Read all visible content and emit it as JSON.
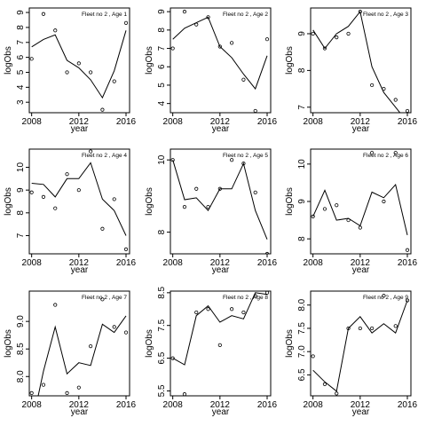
{
  "chart_data": [
    {
      "type": "line",
      "title": "Fleet no 2 , Age 1",
      "xlabel": "year",
      "ylabel": "logObs",
      "x": [
        2008,
        2009,
        2010,
        2011,
        2012,
        2013,
        2014,
        2015,
        2016
      ],
      "xticks": [
        2008,
        2012,
        2016
      ],
      "xlim": [
        2007.8,
        2016.3
      ],
      "yticks": [
        3,
        4,
        5,
        6,
        7,
        8,
        9
      ],
      "ylim": [
        2.3,
        9.3
      ],
      "series": [
        {
          "style": "line",
          "values": [
            6.7,
            7.2,
            7.5,
            5.8,
            5.3,
            4.5,
            3.3,
            5.1,
            7.8
          ]
        },
        {
          "style": "points",
          "values": [
            5.9,
            8.9,
            7.8,
            5.0,
            5.6,
            5.0,
            2.5,
            4.4,
            8.3
          ]
        }
      ]
    },
    {
      "type": "line",
      "title": "Fleet no 2 , Age 2",
      "xlabel": "year",
      "ylabel": "logObs",
      "x": [
        2008,
        2009,
        2010,
        2011,
        2012,
        2013,
        2014,
        2015,
        2016
      ],
      "xticks": [
        2008,
        2012,
        2016
      ],
      "xlim": [
        2007.8,
        2016.3
      ],
      "yticks": [
        4,
        5,
        6,
        7,
        8,
        9
      ],
      "ylim": [
        3.5,
        9.2
      ],
      "series": [
        {
          "style": "line",
          "values": [
            7.5,
            8.1,
            8.4,
            8.7,
            7.1,
            6.5,
            5.6,
            4.8,
            6.6
          ]
        },
        {
          "style": "points",
          "values": [
            7.0,
            9.0,
            8.3,
            8.7,
            7.1,
            7.3,
            5.3,
            3.6,
            7.5
          ]
        }
      ]
    },
    {
      "type": "line",
      "title": "Fleet no 2 , Age 3",
      "xlabel": "year",
      "ylabel": "logObs",
      "x": [
        2008,
        2009,
        2010,
        2011,
        2012,
        2013,
        2014,
        2015,
        2016
      ],
      "xticks": [
        2008,
        2012,
        2016
      ],
      "xlim": [
        2007.8,
        2016.3
      ],
      "yticks": [
        7.0,
        8.0,
        9.0
      ],
      "ylim": [
        6.85,
        9.7
      ],
      "series": [
        {
          "style": "line",
          "values": [
            9.1,
            8.6,
            9.0,
            9.2,
            9.6,
            8.1,
            7.4,
            7.0,
            6.6
          ]
        },
        {
          "style": "points",
          "values": [
            9.0,
            8.6,
            8.9,
            9.0,
            9.6,
            7.6,
            7.5,
            7.2,
            6.9
          ]
        }
      ]
    },
    {
      "type": "line",
      "title": "Fleet no 2 , Age 4",
      "xlabel": "year",
      "ylabel": "logObs",
      "x": [
        2008,
        2009,
        2010,
        2011,
        2012,
        2013,
        2014,
        2015,
        2016
      ],
      "xticks": [
        2008,
        2012,
        2016
      ],
      "xlim": [
        2007.8,
        2016.3
      ],
      "yticks": [
        7,
        8,
        9,
        10
      ],
      "ylim": [
        6.2,
        10.8
      ],
      "series": [
        {
          "style": "line",
          "values": [
            9.3,
            9.25,
            8.7,
            9.5,
            9.5,
            10.2,
            8.6,
            8.1,
            7.0
          ]
        },
        {
          "style": "points",
          "values": [
            8.9,
            8.7,
            8.2,
            9.7,
            9.0,
            10.7,
            7.3,
            8.6,
            6.4
          ]
        }
      ]
    },
    {
      "type": "line",
      "title": "Fleet no 2 , Age 5",
      "xlabel": "year",
      "ylabel": "logObs",
      "x": [
        2008,
        2009,
        2010,
        2011,
        2012,
        2013,
        2014,
        2015,
        2016
      ],
      "xticks": [
        2008,
        2012,
        2016
      ],
      "xlim": [
        2007.8,
        2016.3
      ],
      "yticks": [
        8.0,
        10.0
      ],
      "ylim": [
        7.4,
        10.3
      ],
      "series": [
        {
          "style": "line",
          "values": [
            10.0,
            8.9,
            8.95,
            8.6,
            9.2,
            9.2,
            9.9,
            8.6,
            7.8
          ]
        },
        {
          "style": "points",
          "values": [
            10.0,
            8.7,
            9.2,
            8.7,
            9.2,
            10.0,
            9.9,
            9.1,
            7.4
          ]
        }
      ]
    },
    {
      "type": "line",
      "title": "Fleet no 2 , Age 6",
      "xlabel": "year",
      "ylabel": "logObs",
      "x": [
        2008,
        2009,
        2010,
        2011,
        2012,
        2013,
        2014,
        2015,
        2016
      ],
      "xticks": [
        2008,
        2012,
        2016
      ],
      "xlim": [
        2007.8,
        2016.3
      ],
      "yticks": [
        8.0,
        9.0,
        10.0
      ],
      "ylim": [
        7.6,
        10.4
      ],
      "series": [
        {
          "style": "line",
          "values": [
            8.6,
            9.3,
            8.5,
            8.55,
            8.35,
            9.25,
            9.1,
            9.45,
            8.1
          ]
        },
        {
          "style": "points",
          "values": [
            8.6,
            8.8,
            8.9,
            8.5,
            8.3,
            10.3,
            9.0,
            10.3,
            7.7
          ]
        }
      ]
    },
    {
      "type": "line",
      "title": "Fleet no 2 , Age 7",
      "xlabel": "year",
      "ylabel": "logObs",
      "x": [
        2008,
        2009,
        2010,
        2011,
        2012,
        2013,
        2014,
        2015,
        2016
      ],
      "xticks": [
        2008,
        2012,
        2016
      ],
      "xlim": [
        2007.8,
        2016.3
      ],
      "yticks": [
        8.0,
        8.5,
        9.0
      ],
      "ylim": [
        7.65,
        9.55
      ],
      "series": [
        {
          "style": "line",
          "values": [
            7.1,
            8.1,
            8.9,
            8.05,
            8.25,
            8.2,
            8.95,
            8.8,
            9.1
          ]
        },
        {
          "style": "points",
          "values": [
            7.7,
            7.85,
            9.3,
            7.7,
            7.8,
            8.55,
            9.4,
            8.9,
            8.8
          ]
        }
      ]
    },
    {
      "type": "line",
      "title": "Fleet no 2 , Age 8",
      "xlabel": "year",
      "ylabel": "logObs",
      "x": [
        2008,
        2009,
        2010,
        2011,
        2012,
        2013,
        2014,
        2015,
        2016
      ],
      "xticks": [
        2008,
        2012,
        2016
      ],
      "xlim": [
        2007.8,
        2016.3
      ],
      "yticks": [
        5.5,
        6.5,
        7.5,
        8.5
      ],
      "ylim": [
        5.35,
        8.55
      ],
      "series": [
        {
          "style": "line",
          "values": [
            6.5,
            6.3,
            7.8,
            8.1,
            7.6,
            7.8,
            7.7,
            8.5,
            8.45
          ]
        },
        {
          "style": "points",
          "values": [
            6.5,
            5.4,
            7.9,
            8.0,
            6.9,
            8.0,
            7.9,
            8.4,
            8.5
          ]
        }
      ]
    },
    {
      "type": "line",
      "title": "Fleet no 2 , Age 9",
      "xlabel": "year",
      "ylabel": "logObs",
      "x": [
        2008,
        2009,
        2010,
        2011,
        2012,
        2013,
        2014,
        2015,
        2016
      ],
      "xticks": [
        2008,
        2012,
        2016
      ],
      "xlim": [
        2007.8,
        2016.3
      ],
      "yticks": [
        6.5,
        7.0,
        7.5,
        8.0
      ],
      "ylim": [
        6.05,
        8.3
      ],
      "series": [
        {
          "style": "line",
          "values": [
            6.6,
            6.35,
            6.15,
            7.5,
            7.75,
            7.4,
            7.6,
            7.4,
            8.1
          ]
        },
        {
          "style": "points",
          "values": [
            6.9,
            6.3,
            6.1,
            7.5,
            7.5,
            7.5,
            8.2,
            7.55,
            8.1
          ]
        }
      ]
    }
  ]
}
